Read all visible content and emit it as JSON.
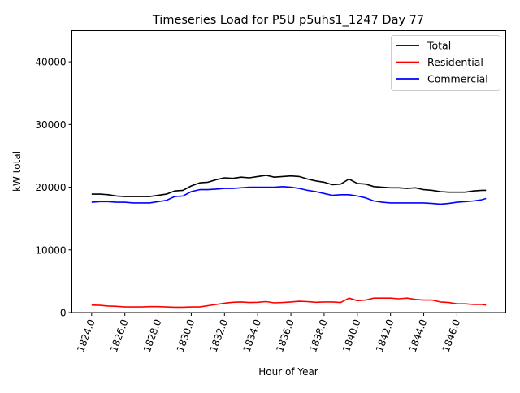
{
  "chart_data": {
    "type": "line",
    "title": "Timeseries Load for P5U p5uhs1_1247  Day 77",
    "xlabel": "Hour of Year",
    "ylabel": "kW total",
    "xlim": [
      1822.81,
      1848.94
    ],
    "ylim": [
      0,
      45000
    ],
    "xticks": [
      1824,
      1826,
      1828,
      1830,
      1832,
      1834,
      1836,
      1838,
      1840,
      1842,
      1844,
      1846
    ],
    "xtick_labels": [
      "1824.0",
      "1826.0",
      "1828.0",
      "1830.0",
      "1832.0",
      "1834.0",
      "1836.0",
      "1838.0",
      "1840.0",
      "1842.0",
      "1844.0",
      "1846.0"
    ],
    "yticks": [
      0,
      10000,
      20000,
      30000,
      40000
    ],
    "ytick_labels": [
      "0",
      "10000",
      "20000",
      "30000",
      "40000"
    ],
    "legend_position": "top-right",
    "grid": false,
    "x": [
      1824,
      1824.5,
      1825,
      1825.5,
      1826,
      1826.5,
      1827,
      1827.5,
      1828,
      1828.5,
      1829,
      1829.5,
      1830,
      1830.5,
      1831,
      1831.5,
      1832,
      1832.5,
      1833,
      1833.5,
      1834,
      1834.5,
      1835,
      1835.5,
      1836,
      1836.5,
      1837,
      1837.5,
      1838,
      1838.5,
      1839,
      1839.5,
      1840,
      1840.5,
      1841,
      1841.5,
      1842,
      1842.5,
      1843,
      1843.5,
      1844,
      1844.5,
      1845,
      1845.5,
      1846,
      1846.5,
      1847,
      1847.5,
      1847.75
    ],
    "series": [
      {
        "name": "Total",
        "color": "#000000",
        "values": [
          18900,
          18900,
          18800,
          18600,
          18500,
          18500,
          18500,
          18500,
          18700,
          18900,
          19400,
          19500,
          20200,
          20700,
          20800,
          21200,
          21500,
          21400,
          21600,
          21500,
          21700,
          21900,
          21600,
          21700,
          21800,
          21700,
          21300,
          21000,
          20800,
          20400,
          20500,
          21300,
          20600,
          20500,
          20100,
          20000,
          19900,
          19900,
          19800,
          19900,
          19600,
          19500,
          19300,
          19200,
          19200,
          19200,
          19400,
          19500,
          19500
        ]
      },
      {
        "name": "Residential",
        "color": "#ff0000",
        "values": [
          1200,
          1150,
          1050,
          1000,
          900,
          900,
          900,
          950,
          950,
          900,
          850,
          850,
          900,
          900,
          1100,
          1300,
          1500,
          1650,
          1700,
          1600,
          1650,
          1750,
          1550,
          1600,
          1700,
          1800,
          1750,
          1650,
          1700,
          1700,
          1600,
          2300,
          1900,
          2000,
          2300,
          2300,
          2300,
          2200,
          2300,
          2100,
          2000,
          2000,
          1700,
          1600,
          1400,
          1400,
          1300,
          1300,
          1200
        ]
      },
      {
        "name": "Commercial",
        "color": "#0000ff",
        "values": [
          17600,
          17700,
          17700,
          17600,
          17600,
          17500,
          17500,
          17500,
          17700,
          17900,
          18500,
          18600,
          19300,
          19600,
          19600,
          19700,
          19800,
          19800,
          19900,
          20000,
          20000,
          20000,
          20000,
          20100,
          20000,
          19800,
          19500,
          19300,
          19000,
          18700,
          18800,
          18800,
          18600,
          18300,
          17800,
          17600,
          17500,
          17500,
          17500,
          17500,
          17500,
          17400,
          17300,
          17400,
          17600,
          17700,
          17800,
          18000,
          18200
        ]
      }
    ]
  }
}
